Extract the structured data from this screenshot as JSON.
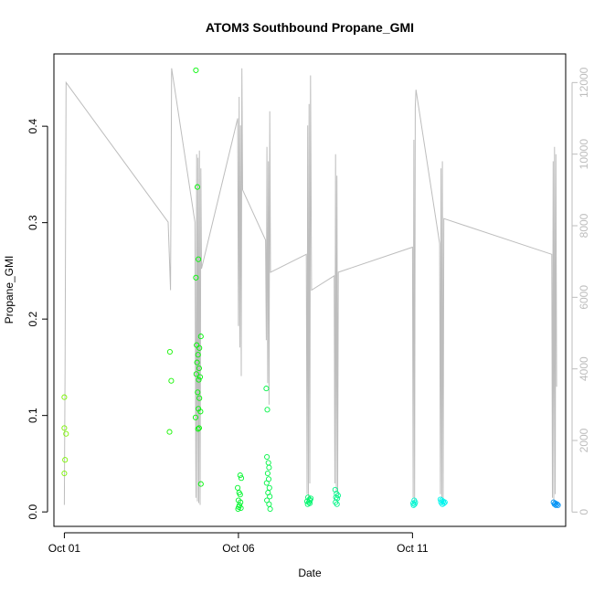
{
  "chart_data": {
    "type": "scatter",
    "title": "ATOM3 Southbound Propane_GMI",
    "xlabel": "Date",
    "ylabel": "Propane_GMI",
    "xlim_days_from_oct01": [
      -0.3,
      14.4
    ],
    "ylim": [
      -0.015,
      0.475
    ],
    "y2lim": [
      -400,
      12800
    ],
    "x_ticks": [
      {
        "label": "Oct 01",
        "day": 0
      },
      {
        "label": "Oct 06",
        "day": 5
      },
      {
        "label": "Oct 11",
        "day": 10
      }
    ],
    "y_ticks": [
      {
        "label": "0.0",
        "value": 0
      },
      {
        "label": "0.1",
        "value": 0.1
      },
      {
        "label": "0.2",
        "value": 0.2
      },
      {
        "label": "0.3",
        "value": 0.3
      },
      {
        "label": "0.4",
        "value": 0.4
      }
    ],
    "y2_ticks": [
      {
        "label": "0",
        "value": 0
      },
      {
        "label": "2000",
        "value": 2000
      },
      {
        "label": "4000",
        "value": 4000
      },
      {
        "label": "6000",
        "value": 6000
      },
      {
        "label": "8000",
        "value": 8000
      },
      {
        "label": "10000",
        "value": 10000
      },
      {
        "label": "12000",
        "value": 12000
      }
    ],
    "points": [
      {
        "day": 0.0,
        "y": 0.119
      },
      {
        "day": 0.0,
        "y": 0.087
      },
      {
        "day": 0.05,
        "y": 0.081
      },
      {
        "day": 0.02,
        "y": 0.054
      },
      {
        "day": 0.0,
        "y": 0.04
      },
      {
        "day": 3.03,
        "y": 0.166
      },
      {
        "day": 3.07,
        "y": 0.136
      },
      {
        "day": 3.02,
        "y": 0.083
      },
      {
        "day": 3.78,
        "y": 0.458
      },
      {
        "day": 3.82,
        "y": 0.337
      },
      {
        "day": 3.85,
        "y": 0.262
      },
      {
        "day": 3.78,
        "y": 0.243
      },
      {
        "day": 3.92,
        "y": 0.182
      },
      {
        "day": 3.8,
        "y": 0.173
      },
      {
        "day": 3.88,
        "y": 0.17
      },
      {
        "day": 3.84,
        "y": 0.163
      },
      {
        "day": 3.81,
        "y": 0.155
      },
      {
        "day": 3.87,
        "y": 0.149
      },
      {
        "day": 3.79,
        "y": 0.143
      },
      {
        "day": 3.9,
        "y": 0.14
      },
      {
        "day": 3.86,
        "y": 0.137
      },
      {
        "day": 3.83,
        "y": 0.124
      },
      {
        "day": 3.88,
        "y": 0.118
      },
      {
        "day": 3.85,
        "y": 0.107
      },
      {
        "day": 3.91,
        "y": 0.104
      },
      {
        "day": 3.77,
        "y": 0.098
      },
      {
        "day": 3.87,
        "y": 0.087
      },
      {
        "day": 3.84,
        "y": 0.086
      },
      {
        "day": 3.92,
        "y": 0.029
      },
      {
        "day": 5.05,
        "y": 0.038
      },
      {
        "day": 5.08,
        "y": 0.035
      },
      {
        "day": 4.98,
        "y": 0.025
      },
      {
        "day": 5.02,
        "y": 0.02
      },
      {
        "day": 5.05,
        "y": 0.018
      },
      {
        "day": 5.0,
        "y": 0.012
      },
      {
        "day": 5.06,
        "y": 0.01
      },
      {
        "day": 5.03,
        "y": 0.007
      },
      {
        "day": 5.01,
        "y": 0.005
      },
      {
        "day": 5.07,
        "y": 0.004
      },
      {
        "day": 4.99,
        "y": 0.003
      },
      {
        "day": 5.8,
        "y": 0.128
      },
      {
        "day": 5.83,
        "y": 0.106
      },
      {
        "day": 5.82,
        "y": 0.057
      },
      {
        "day": 5.86,
        "y": 0.051
      },
      {
        "day": 5.88,
        "y": 0.046
      },
      {
        "day": 5.84,
        "y": 0.04
      },
      {
        "day": 5.87,
        "y": 0.034
      },
      {
        "day": 5.81,
        "y": 0.03
      },
      {
        "day": 5.89,
        "y": 0.025
      },
      {
        "day": 5.85,
        "y": 0.02
      },
      {
        "day": 5.9,
        "y": 0.016
      },
      {
        "day": 5.82,
        "y": 0.012
      },
      {
        "day": 5.88,
        "y": 0.008
      },
      {
        "day": 5.91,
        "y": 0.003
      },
      {
        "day": 7.0,
        "y": 0.015
      },
      {
        "day": 7.04,
        "y": 0.013
      },
      {
        "day": 7.08,
        "y": 0.014
      },
      {
        "day": 6.97,
        "y": 0.011
      },
      {
        "day": 7.02,
        "y": 0.01
      },
      {
        "day": 7.06,
        "y": 0.012
      },
      {
        "day": 6.99,
        "y": 0.008
      },
      {
        "day": 7.05,
        "y": 0.009
      },
      {
        "day": 7.78,
        "y": 0.023
      },
      {
        "day": 7.82,
        "y": 0.019
      },
      {
        "day": 7.86,
        "y": 0.017
      },
      {
        "day": 7.8,
        "y": 0.015
      },
      {
        "day": 7.84,
        "y": 0.014
      },
      {
        "day": 7.79,
        "y": 0.01
      },
      {
        "day": 7.83,
        "y": 0.008
      },
      {
        "day": 10.05,
        "y": 0.012
      },
      {
        "day": 10.08,
        "y": 0.01
      },
      {
        "day": 10.02,
        "y": 0.009
      },
      {
        "day": 10.06,
        "y": 0.008
      },
      {
        "day": 10.03,
        "y": 0.007
      },
      {
        "day": 10.8,
        "y": 0.013
      },
      {
        "day": 10.84,
        "y": 0.012
      },
      {
        "day": 10.88,
        "y": 0.011
      },
      {
        "day": 10.82,
        "y": 0.01
      },
      {
        "day": 10.9,
        "y": 0.009
      },
      {
        "day": 10.86,
        "y": 0.008
      },
      {
        "day": 10.93,
        "y": 0.01
      },
      {
        "day": 14.05,
        "y": 0.01
      },
      {
        "day": 14.1,
        "y": 0.009
      },
      {
        "day": 14.15,
        "y": 0.008
      },
      {
        "day": 14.08,
        "y": 0.008
      },
      {
        "day": 14.18,
        "y": 0.007
      },
      {
        "day": 14.12,
        "y": 0.007
      }
    ],
    "line_series": [
      [
        0.0,
        200
      ],
      [
        0.02,
        4000
      ],
      [
        0.05,
        12000
      ],
      [
        2.98,
        8100
      ],
      [
        3.05,
        6200
      ],
      [
        3.08,
        12400
      ],
      [
        3.75,
        8100
      ],
      [
        3.78,
        400
      ],
      [
        3.8,
        10000
      ],
      [
        3.82,
        300
      ],
      [
        3.84,
        9900
      ],
      [
        3.86,
        250
      ],
      [
        3.88,
        10100
      ],
      [
        3.9,
        200
      ],
      [
        3.92,
        9600
      ],
      [
        3.94,
        6800
      ],
      [
        4.98,
        11000
      ],
      [
        5.0,
        5200
      ],
      [
        5.02,
        11600
      ],
      [
        5.04,
        4600
      ],
      [
        5.06,
        10800
      ],
      [
        5.08,
        3800
      ],
      [
        5.1,
        12400
      ],
      [
        5.12,
        9000
      ],
      [
        5.78,
        7600
      ],
      [
        5.8,
        4800
      ],
      [
        5.82,
        10200
      ],
      [
        5.84,
        3600
      ],
      [
        5.86,
        9800
      ],
      [
        5.88,
        3000
      ],
      [
        5.9,
        11200
      ],
      [
        5.92,
        6700
      ],
      [
        6.95,
        7200
      ],
      [
        6.97,
        500
      ],
      [
        6.99,
        10800
      ],
      [
        7.01,
        400
      ],
      [
        7.03,
        11400
      ],
      [
        7.05,
        800
      ],
      [
        7.07,
        12200
      ],
      [
        7.1,
        6200
      ],
      [
        7.75,
        6600
      ],
      [
        7.77,
        800
      ],
      [
        7.79,
        10000
      ],
      [
        7.81,
        600
      ],
      [
        7.83,
        9400
      ],
      [
        7.85,
        500
      ],
      [
        7.87,
        6700
      ],
      [
        10.0,
        7400
      ],
      [
        10.02,
        400
      ],
      [
        10.04,
        10400
      ],
      [
        10.06,
        300
      ],
      [
        10.08,
        11300
      ],
      [
        10.1,
        11800
      ],
      [
        10.78,
        7500
      ],
      [
        10.8,
        500
      ],
      [
        10.82,
        9600
      ],
      [
        10.84,
        400
      ],
      [
        10.86,
        9800
      ],
      [
        10.88,
        300
      ],
      [
        10.9,
        8200
      ],
      [
        14.0,
        7200
      ],
      [
        14.02,
        400
      ],
      [
        14.04,
        9800
      ],
      [
        14.06,
        300
      ],
      [
        14.08,
        10200
      ],
      [
        14.1,
        500
      ],
      [
        14.12,
        10000
      ],
      [
        14.14,
        3500
      ]
    ]
  }
}
